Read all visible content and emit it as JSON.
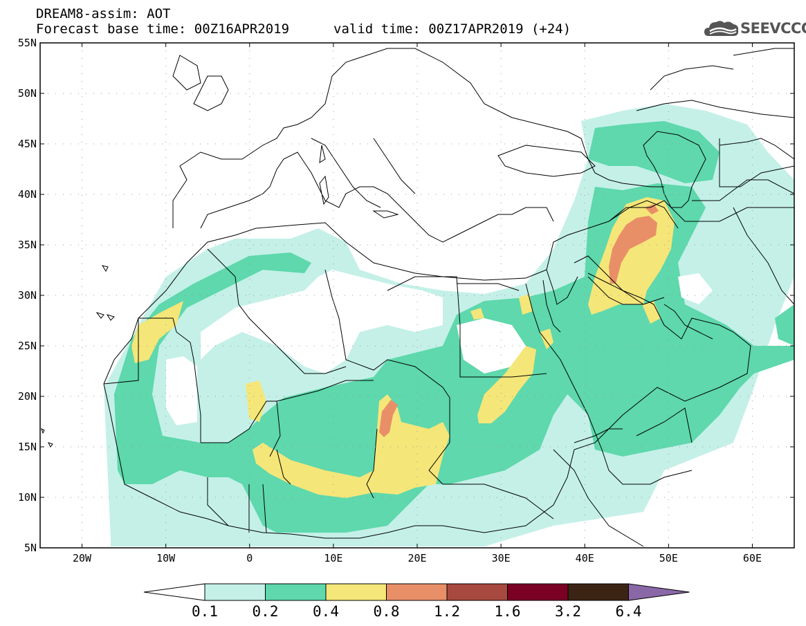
{
  "header": {
    "title": "DREAM8-assim: AOT",
    "base_time": "Forecast base time: 00Z16APR2019",
    "valid_time": "valid time: 00Z17APR2019 (+24)"
  },
  "logo": {
    "text": "SEEVCCC",
    "icon": "cloud-icon",
    "color": "#555555"
  },
  "map": {
    "lon_range": [
      -25,
      65
    ],
    "lat_range": [
      5,
      55
    ],
    "lat_ticks": [
      "55N",
      "50N",
      "45N",
      "40N",
      "35N",
      "30N",
      "25N",
      "20N",
      "15N",
      "10N",
      "5N"
    ],
    "lon_ticks": [
      "20W",
      "10W",
      "0",
      "10E",
      "20E",
      "30E",
      "40E",
      "50E",
      "60E"
    ]
  },
  "colorbar": {
    "levels": [
      "0.1",
      "0.2",
      "0.4",
      "0.8",
      "1.2",
      "1.6",
      "3.2",
      "6.4"
    ],
    "colors": [
      "#c4f0e8",
      "#5ed8ac",
      "#f5e679",
      "#e88f68",
      "#a8493f",
      "#7a0024",
      "#3b2414",
      "#8a68a8"
    ]
  }
}
